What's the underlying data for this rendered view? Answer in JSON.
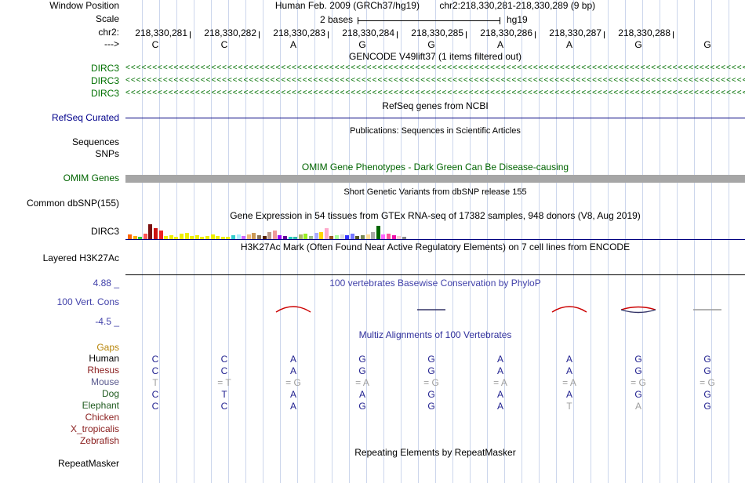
{
  "colors": {
    "guideline": "#ccd6ec",
    "gene_green": "#007000",
    "omim_green": "#006400",
    "refseq_navy": "#00008b",
    "phylop_blue": "#4242aa",
    "multiz_blue": "#30309c",
    "align_base": "#1f1f8f",
    "align_gray": "#9e9e9e",
    "gaps_orange": "#b8860b",
    "omim_bar_gray": "#a6a6a6",
    "gtex_baseline": "#000080",
    "h3k27ac_baseline": "#000000"
  },
  "header": {
    "window_label": "Window Position",
    "assembly": "Human Feb. 2009 (GRCh37/hg19)",
    "position": "chr2:218,330,281-218,330,289 (9 bp)",
    "scale_label": "Scale",
    "scale_text": "2 bases",
    "scale_right": "hg19",
    "chrom_label": "chr2:",
    "strand_label": "--->",
    "coords": [
      "218,330,281",
      "218,330,282",
      "218,330,283",
      "218,330,284",
      "218,330,285",
      "218,330,286",
      "218,330,287",
      "218,330,288"
    ],
    "bases": [
      "C",
      "C",
      "A",
      "G",
      "G",
      "A",
      "A",
      "G",
      "G"
    ]
  },
  "tracks": {
    "gencode": {
      "title": "GENCODE V49lift37 (1 items filtered out)",
      "items": [
        "DIRC3",
        "DIRC3",
        "DIRC3"
      ]
    },
    "refseq": {
      "title": "RefSeq genes from NCBI",
      "label": "RefSeq Curated"
    },
    "publications": {
      "title": "Publications: Sequences in Scientific Articles",
      "label_sequences": "Sequences",
      "label_snps": "SNPs"
    },
    "omim": {
      "title": "OMIM Gene Phenotypes - Dark Green Can Be Disease-causing",
      "label": "OMIM Genes"
    },
    "dbsnp": {
      "title": "Short Genetic Variants from dbSNP release 155",
      "label": "Common dbSNP(155)"
    },
    "gtex": {
      "title": "Gene Expression in 54 tissues from GTEx RNA-seq of 17382 samples, 948 donors (V8, Aug 2019)",
      "label": "DIRC3",
      "bars": [
        {
          "c": "#ff6600",
          "h": 6
        },
        {
          "c": "#ffaa00",
          "h": 4
        },
        {
          "c": "#33cc33",
          "h": 3
        },
        {
          "c": "#ff5555",
          "h": 7
        },
        {
          "c": "#7a1010",
          "h": 19
        },
        {
          "c": "#cc1111",
          "h": 14
        },
        {
          "c": "#ee2222",
          "h": 11
        },
        {
          "c": "#eeee00",
          "h": 4
        },
        {
          "c": "#eeee00",
          "h": 5
        },
        {
          "c": "#eeee00",
          "h": 3
        },
        {
          "c": "#eeee00",
          "h": 7
        },
        {
          "c": "#eeee00",
          "h": 8
        },
        {
          "c": "#eeee00",
          "h": 4
        },
        {
          "c": "#eeee00",
          "h": 5
        },
        {
          "c": "#eeee00",
          "h": 3
        },
        {
          "c": "#eeee00",
          "h": 4
        },
        {
          "c": "#eeee00",
          "h": 6
        },
        {
          "c": "#eeee00",
          "h": 4
        },
        {
          "c": "#eeee00",
          "h": 3
        },
        {
          "c": "#eeee00",
          "h": 3
        },
        {
          "c": "#33cccc",
          "h": 5
        },
        {
          "c": "#aaeeff",
          "h": 6
        },
        {
          "c": "#cc66ff",
          "h": 4
        },
        {
          "c": "#eebb77",
          "h": 6
        },
        {
          "c": "#cc9955",
          "h": 8
        },
        {
          "c": "#8b7355",
          "h": 5
        },
        {
          "c": "#552200",
          "h": 4
        },
        {
          "c": "#bb9988",
          "h": 9
        },
        {
          "c": "#ee9999",
          "h": 11
        },
        {
          "c": "#9900ff",
          "h": 5
        },
        {
          "c": "#660099",
          "h": 4
        },
        {
          "c": "#22ccbb",
          "h": 3
        },
        {
          "c": "#33bbaa",
          "h": 3
        },
        {
          "c": "#aabb66",
          "h": 6
        },
        {
          "c": "#99ee22",
          "h": 7
        },
        {
          "c": "#99bb88",
          "h": 4
        },
        {
          "c": "#aaaaff",
          "h": 8
        },
        {
          "c": "#ffd700",
          "h": 9
        },
        {
          "c": "#ffaacc",
          "h": 14
        },
        {
          "c": "#995522",
          "h": 4
        },
        {
          "c": "#aaff99",
          "h": 5
        },
        {
          "c": "#dddddd",
          "h": 6
        },
        {
          "c": "#3333ff",
          "h": 5
        },
        {
          "c": "#7777ff",
          "h": 7
        },
        {
          "c": "#555522",
          "h": 4
        },
        {
          "c": "#778855",
          "h": 5
        },
        {
          "c": "#ffdd99",
          "h": 6
        },
        {
          "c": "#aaaaaa",
          "h": 9
        },
        {
          "c": "#006600",
          "h": 17
        },
        {
          "c": "#ff66ff",
          "h": 6
        },
        {
          "c": "#ff5599",
          "h": 7
        },
        {
          "c": "#ee11aa",
          "h": 5
        },
        {
          "c": "#ffcccc",
          "h": 4
        },
        {
          "c": "#888888",
          "h": 3
        }
      ]
    },
    "h3k27ac": {
      "title": "H3K27Ac Mark (Often Found Near Active Regulatory Elements) on 7 cell lines from ENCODE",
      "label": "Layered H3K27Ac"
    },
    "conservation": {
      "title": "100 vertebrates Basewise Conservation by PhyloP",
      "label": "100 Vert. Cons",
      "max": "4.88 _",
      "min": "-4.5 _",
      "marks": [
        {
          "col": 3,
          "type": "arc",
          "color": "#cc0000"
        },
        {
          "col": 5,
          "type": "dash",
          "color": "#333366"
        },
        {
          "col": 7,
          "type": "arc",
          "color": "#cc0000"
        },
        {
          "col": 8,
          "type": "lens",
          "top": "#cc0000",
          "bottom": "#333366"
        },
        {
          "col": 9,
          "type": "dash",
          "color": "#999999"
        }
      ]
    },
    "multiz": {
      "title": "Multiz Alignments of 100 Vertebrates",
      "gaps_label": "Gaps",
      "rows": [
        {
          "name": "Human",
          "color": "#000000",
          "cells": [
            "C",
            "C",
            "A",
            "G",
            "G",
            "A",
            "A",
            "G",
            "G"
          ],
          "gray": []
        },
        {
          "name": "Rhesus",
          "color": "#8b2020",
          "cells": [
            "C",
            "C",
            "A",
            "G",
            "G",
            "A",
            "A",
            "G",
            "G"
          ],
          "gray": []
        },
        {
          "name": "Mouse",
          "color": "#5a5a8e",
          "cells": [
            "T",
            "= T",
            "= G",
            "= A",
            "= G",
            "= A",
            "= A",
            "= G",
            "= G"
          ],
          "gray": [
            0,
            1,
            2,
            3,
            4,
            5,
            6,
            7,
            8
          ]
        },
        {
          "name": "Dog",
          "color": "#1e5a1e",
          "cells": [
            "C",
            "T",
            "A",
            "A",
            "G",
            "A",
            "A",
            "G",
            "G"
          ],
          "gray": []
        },
        {
          "name": "Elephant",
          "color": "#1e5a1e",
          "cells": [
            "C",
            "C",
            "A",
            "G",
            "G",
            "A",
            "T",
            "A",
            "G"
          ],
          "gray": [
            6,
            7
          ]
        },
        {
          "name": "Chicken",
          "color": "#8b2020",
          "cells": [],
          "gray": []
        },
        {
          "name": "X_tropicalis",
          "color": "#8b2020",
          "cells": [],
          "gray": []
        },
        {
          "name": "Zebrafish",
          "color": "#8b2020",
          "cells": [],
          "gray": []
        }
      ]
    },
    "repeatmasker": {
      "title": "Repeating Elements by RepeatMasker",
      "label": "RepeatMasker"
    }
  }
}
